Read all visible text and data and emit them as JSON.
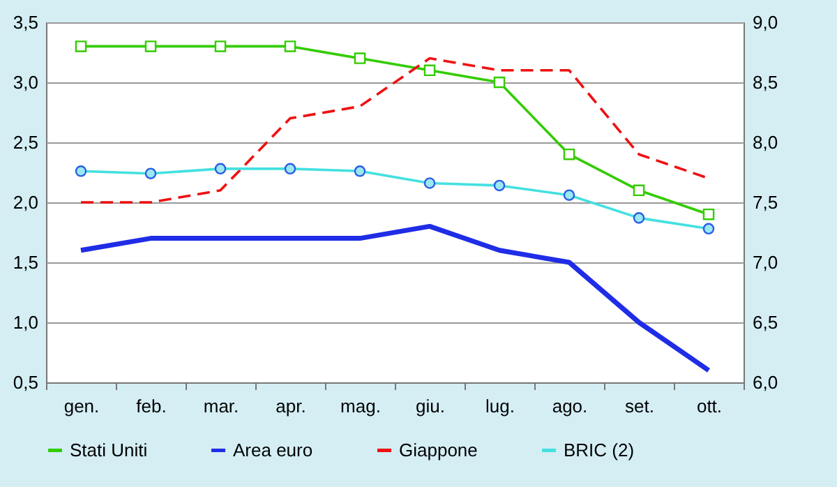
{
  "chart_data": {
    "type": "line",
    "categories": [
      "gen.",
      "feb.",
      "mar.",
      "apr.",
      "mag.",
      "giu.",
      "lug.",
      "ago.",
      "set.",
      "ott."
    ],
    "series": [
      {
        "name": "Stati Uniti",
        "color": "#33cc00",
        "marker": "square",
        "line_style": "solid",
        "values": [
          3.3,
          3.3,
          3.3,
          3.3,
          3.2,
          3.1,
          3.0,
          2.4,
          2.1,
          1.9
        ]
      },
      {
        "name": "Area euro",
        "color": "#1f2de6",
        "marker": "none",
        "line_style": "solid",
        "values": [
          1.6,
          1.7,
          1.7,
          1.7,
          1.7,
          1.8,
          1.6,
          1.5,
          1.0,
          0.6
        ]
      },
      {
        "name": "Giappone",
        "color": "#ee1111",
        "marker": "none",
        "line_style": "dashed",
        "values": [
          2.0,
          2.0,
          2.1,
          2.7,
          2.8,
          3.2,
          3.1,
          3.1,
          2.4,
          2.2
        ]
      },
      {
        "name": "BRIC (2)",
        "color": "#44e0e0",
        "marker": "circle",
        "line_style": "solid",
        "axis": "y2",
        "values": [
          7.76,
          7.74,
          7.78,
          7.78,
          7.76,
          7.66,
          7.64,
          7.56,
          7.37,
          7.28
        ]
      }
    ],
    "ylim": [
      0.5,
      3.5
    ],
    "yticks": [
      {
        "value": 0.5,
        "label": "0,5"
      },
      {
        "value": 1,
        "label": "1,0"
      },
      {
        "value": 1.5,
        "label": "1,5"
      },
      {
        "value": 2,
        "label": "2,0"
      },
      {
        "value": 2.5,
        "label": "2,5"
      },
      {
        "value": 3,
        "label": "3,0"
      },
      {
        "value": 3.5,
        "label": "3,5"
      }
    ],
    "y2lim": [
      6.0,
      9.0
    ],
    "y2ticks": [
      {
        "value": 6,
        "label": "6,0"
      },
      {
        "value": 6.5,
        "label": "6,5"
      },
      {
        "value": 7,
        "label": "7,0"
      },
      {
        "value": 7.5,
        "label": "7,5"
      },
      {
        "value": 8,
        "label": "8,0"
      },
      {
        "value": 8.5,
        "label": "8,5"
      },
      {
        "value": 9,
        "label": "9,0"
      }
    ],
    "grid": "y",
    "legend": "bottom"
  }
}
